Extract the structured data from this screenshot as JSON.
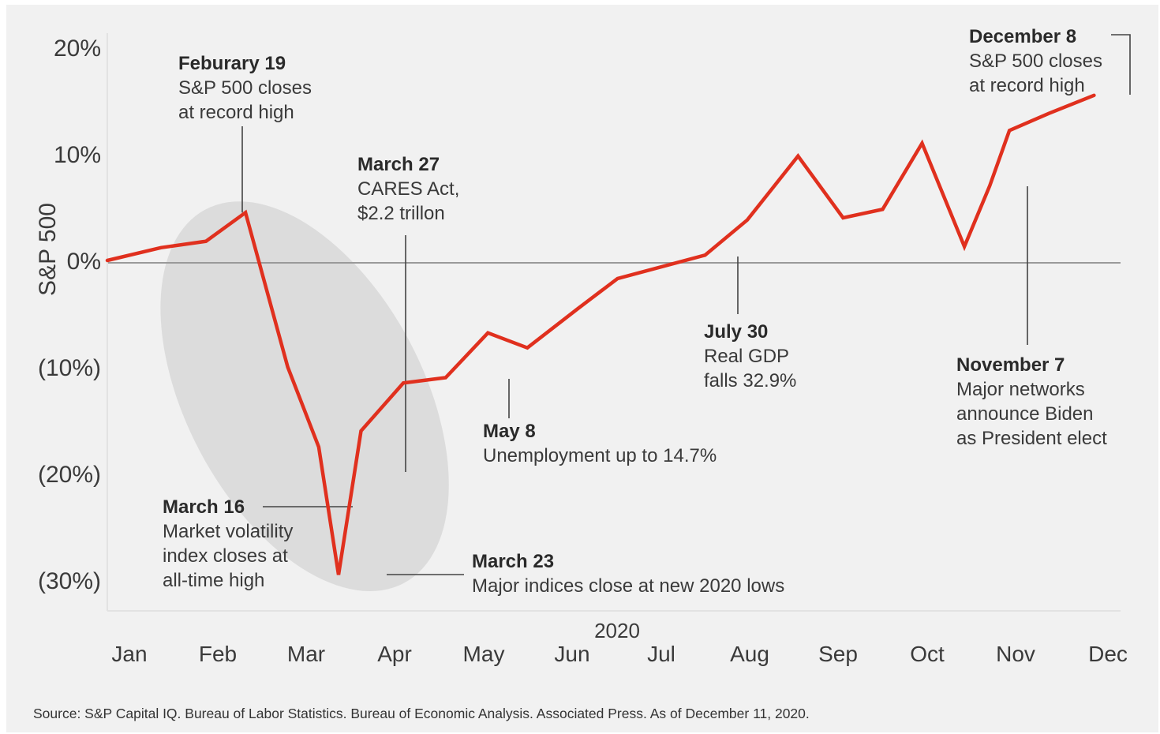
{
  "chart_data": {
    "type": "line",
    "title": "",
    "ylabel": "S&P 500",
    "xlabel": "2020",
    "ylim": [
      -30,
      20
    ],
    "y_ticks": [
      {
        "value": 20,
        "label": "20%"
      },
      {
        "value": 10,
        "label": "10%"
      },
      {
        "value": 0,
        "label": "0%"
      },
      {
        "value": -10,
        "label": "(10%)"
      },
      {
        "value": -20,
        "label": "(20%)"
      },
      {
        "value": -30,
        "label": "(30%)"
      }
    ],
    "x_ticks": [
      "Jan",
      "Feb",
      "Mar",
      "Apr",
      "May",
      "Jun",
      "Jul",
      "Aug",
      "Sep",
      "Oct",
      "Nov",
      "Dec"
    ],
    "grid": false,
    "series": [
      {
        "color": "#e0301e",
        "points": [
          {
            "x": "2020-01-01",
            "y": 0.0
          },
          {
            "x": "2020-01-20",
            "y": 1.2
          },
          {
            "x": "2020-02-05",
            "y": 1.8
          },
          {
            "x": "2020-02-19",
            "y": 4.5
          },
          {
            "x": "2020-03-05",
            "y": -10.0
          },
          {
            "x": "2020-03-16",
            "y": -17.5
          },
          {
            "x": "2020-03-23",
            "y": -29.5
          },
          {
            "x": "2020-03-31",
            "y": -16.0
          },
          {
            "x": "2020-04-15",
            "y": -11.5
          },
          {
            "x": "2020-04-30",
            "y": -11.0
          },
          {
            "x": "2020-05-15",
            "y": -6.8
          },
          {
            "x": "2020-05-29",
            "y": -8.2
          },
          {
            "x": "2020-06-16",
            "y": -4.5
          },
          {
            "x": "2020-06-30",
            "y": -1.7
          },
          {
            "x": "2020-07-31",
            "y": 0.5
          },
          {
            "x": "2020-08-15",
            "y": 3.8
          },
          {
            "x": "2020-09-02",
            "y": 9.8
          },
          {
            "x": "2020-09-18",
            "y": 4.0
          },
          {
            "x": "2020-10-02",
            "y": 4.8
          },
          {
            "x": "2020-10-16",
            "y": 11.0
          },
          {
            "x": "2020-10-31",
            "y": 1.3
          },
          {
            "x": "2020-11-09",
            "y": 7.0
          },
          {
            "x": "2020-11-16",
            "y": 12.2
          },
          {
            "x": "2020-11-30",
            "y": 13.8
          },
          {
            "x": "2020-12-16",
            "y": 15.5
          }
        ]
      }
    ],
    "highlight_ellipse": {
      "x_start": "2020-02-15",
      "x_end": "2020-04-05",
      "y_top": 6.0,
      "y_bottom": -31.5
    },
    "annotations": [
      {
        "date": "2020-02-19",
        "y": 4.5,
        "title": "Feburary 19",
        "lines": [
          "S&P 500 closes",
          "at record high"
        ]
      },
      {
        "date": "2020-03-27",
        "y": -20.0,
        "title": "March 27",
        "lines": [
          "CARES Act,",
          "$2.2 trillon"
        ]
      },
      {
        "date": "2020-03-16",
        "y": -23.0,
        "title": "March 16",
        "lines": [
          "Market volatility",
          "index closes at",
          "all-time high"
        ]
      },
      {
        "date": "2020-03-23",
        "y": -29.5,
        "title": "March 23",
        "lines": [
          "Major indices close at new 2020 lows"
        ]
      },
      {
        "date": "2020-04-30",
        "y": -11.0,
        "title": "May 8",
        "lines": [
          "Unemployment up to 14.7%"
        ]
      },
      {
        "date": "2020-07-31",
        "y": 0.5,
        "title": "July 30",
        "lines": [
          "Real GDP",
          "falls 32.9%"
        ]
      },
      {
        "date": "2020-11-09",
        "y": 7.0,
        "title": "November 7",
        "lines": [
          "Major networks",
          "announce Biden",
          "as President elect"
        ]
      },
      {
        "date": "2020-12-16",
        "y": 15.5,
        "title": "December 8",
        "lines": [
          "S&P 500 closes",
          "at record high"
        ]
      }
    ]
  },
  "source_note": "Source: S&P Capital IQ. Bureau of Labor Statistics. Bureau of Economic Analysis. Associated Press. As of December 11, 2020.",
  "colors": {
    "line": "#e0301e",
    "background": "#f1f1f1",
    "ellipse": "#dcdcdc",
    "text": "#3a3a3a",
    "leader": "#444444",
    "zero_line": "#9a9a9a"
  }
}
